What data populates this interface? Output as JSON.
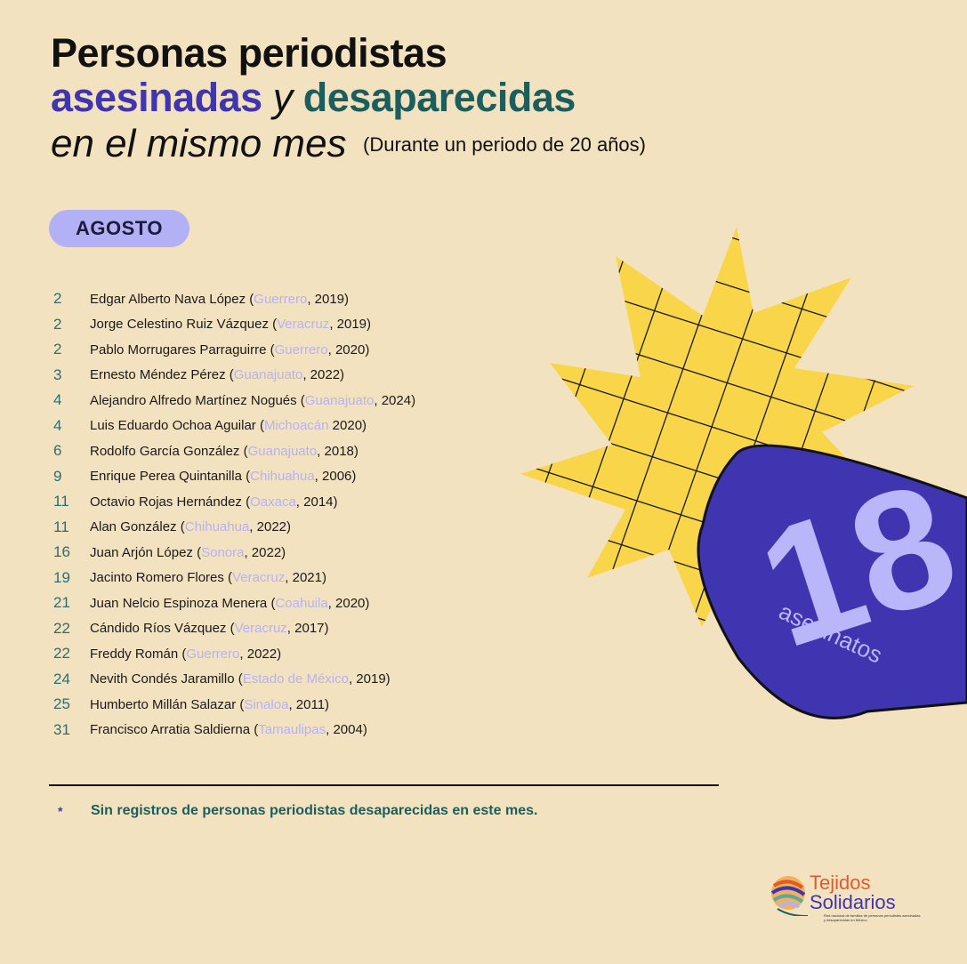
{
  "header": {
    "line1": "Personas periodistas",
    "word_asesinadas": "asesinadas",
    "word_y": "y",
    "word_desaparecidas": "desaparecidas",
    "line3": "en el mismo mes",
    "subtitle": "(Durante un periodo de 20 años)"
  },
  "month": "AGOSTO",
  "entries": [
    {
      "day": "2",
      "name": "Edgar Alberto Nava López (",
      "state": "Guerrero",
      "rest": ", 2019)"
    },
    {
      "day": "2",
      "name": "Jorge Celestino Ruiz Vázquez (",
      "state": "Veracruz",
      "rest": ", 2019)"
    },
    {
      "day": "2",
      "name": "Pablo Morrugares Parraguirre (",
      "state": "Guerrero",
      "rest": ", 2020)"
    },
    {
      "day": "3",
      "name": "Ernesto Méndez Pérez (",
      "state": "Guanajuato",
      "rest": ", 2022)"
    },
    {
      "day": "4",
      "name": "Alejandro Alfredo Martínez Nogués (",
      "state": "Guanajuato",
      "rest": ", 2024)"
    },
    {
      "day": "4",
      "name": "Luis Eduardo Ochoa Aguilar (",
      "state": "Michoacán",
      "rest": " 2020)"
    },
    {
      "day": "6",
      "name": "Rodolfo García González (",
      "state": "Guanajuato",
      "rest": ", 2018)"
    },
    {
      "day": "9",
      "name": "Enrique Perea Quintanilla (",
      "state": "Chihuahua",
      "rest": ", 2006)"
    },
    {
      "day": "11",
      "name": "Octavio Rojas Hernández (",
      "state": "Oaxaca",
      "rest": ", 2014)"
    },
    {
      "day": "11",
      "name": "Alan González (",
      "state": "Chihuahua",
      "rest": ", 2022)"
    },
    {
      "day": "16",
      "name": "Juan Arjón López (",
      "state": "Sonora",
      "rest": ", 2022)"
    },
    {
      "day": "19",
      "name": "Jacinto Romero Flores (",
      "state": "Veracruz",
      "rest": ", 2021)"
    },
    {
      "day": "21",
      "name": "Juan Nelcio Espinoza Menera (",
      "state": "Coahuila",
      "rest": ", 2020)"
    },
    {
      "day": "22",
      "name": "Cándido Ríos Vázquez (",
      "state": "Veracruz",
      "rest": ", 2017)"
    },
    {
      "day": "22",
      "name": "Freddy Román (",
      "state": "Guerrero",
      "rest": ", 2022)"
    },
    {
      "day": "24",
      "name": "Nevith Condés Jaramillo (",
      "state": "Estado de México",
      "rest": ", 2019)"
    },
    {
      "day": "25",
      "name": "Humberto Millán Salazar (",
      "state": "Sinaloa",
      "rest": ", 2011)"
    },
    {
      "day": "31",
      "name": "Francisco Arratia Saldierna (",
      "state": "Tamaulipas",
      "rest": ", 2004)"
    }
  ],
  "badge": {
    "count": "18",
    "label": "asesinatos"
  },
  "footnote": {
    "marker": "*",
    "text": "Sin registros de personas periodistas desaparecidas en este mes."
  },
  "logo": {
    "line1": "Tejidos",
    "line2": "Solidarios",
    "tagline": "Red nacional de familias de personas periodistas asesinadas y desaparecidas en México."
  },
  "colors": {
    "background": "#f3e2c0",
    "purple": "#3f35b0",
    "teal": "#1b5e5e",
    "lavender": "#b3b1f6",
    "yellow": "#f9d54a"
  }
}
